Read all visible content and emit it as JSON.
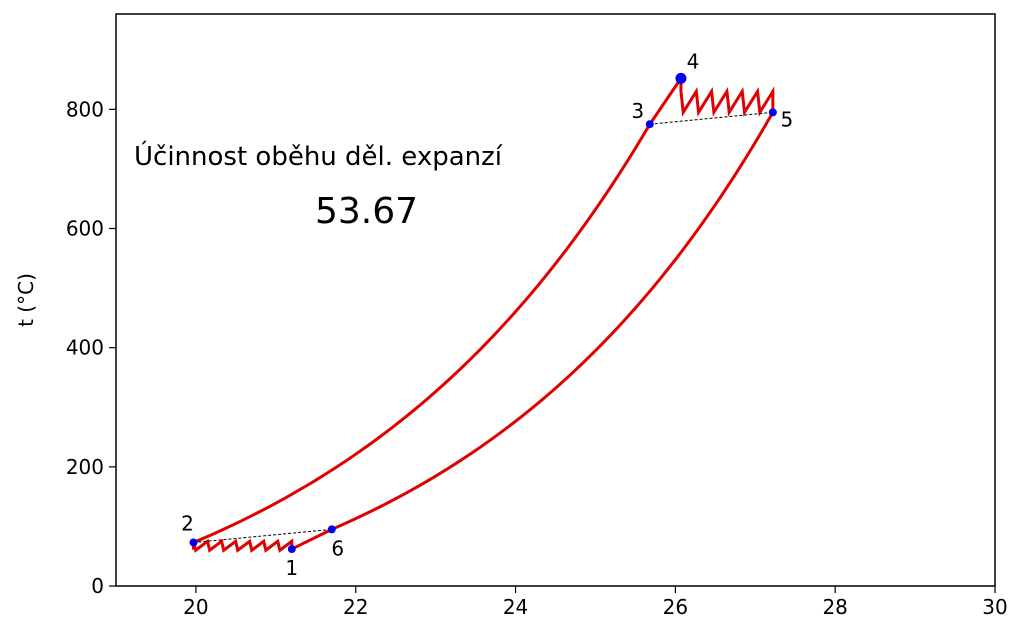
{
  "chart_data": {
    "type": "line",
    "title": "",
    "xlabel": "",
    "ylabel": "t (°C)",
    "xlim": [
      19,
      30
    ],
    "ylim": [
      0,
      960
    ],
    "xticks": [
      20,
      22,
      24,
      26,
      28,
      30
    ],
    "yticks": [
      0,
      200,
      400,
      600,
      800
    ],
    "grid": false,
    "legend": "none",
    "colors": {
      "cycle": "#e00000",
      "points": "#0000ee",
      "dashed": "#000000"
    },
    "points": [
      {
        "label": "1",
        "x": 21.2,
        "y": 62
      },
      {
        "label": "2",
        "x": 19.97,
        "y": 73
      },
      {
        "label": "3",
        "x": 25.68,
        "y": 775
      },
      {
        "label": "4",
        "x": 26.07,
        "y": 852
      },
      {
        "label": "5",
        "x": 27.22,
        "y": 795
      },
      {
        "label": "6",
        "x": 21.7,
        "y": 95
      }
    ],
    "compression_curve": {
      "from": [
        19.97,
        73
      ],
      "to": [
        25.68,
        775
      ]
    },
    "expansion_curve": {
      "from": [
        27.22,
        795
      ],
      "to": [
        21.7,
        95
      ]
    },
    "low_zigzag": {
      "x_start": 19.97,
      "x_end": 21.2,
      "y_low": 60,
      "y_high": 75,
      "teeth": 7
    },
    "high_zigzag": {
      "x_start": 26.07,
      "x_end": 27.22,
      "y_low": 795,
      "y_high": 830,
      "teeth": 6
    },
    "dashed_lines": [
      {
        "from": "2",
        "to": "6"
      },
      {
        "from": "3",
        "to": "5"
      }
    ],
    "annotation": {
      "title": "Účinnost oběhu děl. expanzí",
      "value": "53.67"
    }
  }
}
